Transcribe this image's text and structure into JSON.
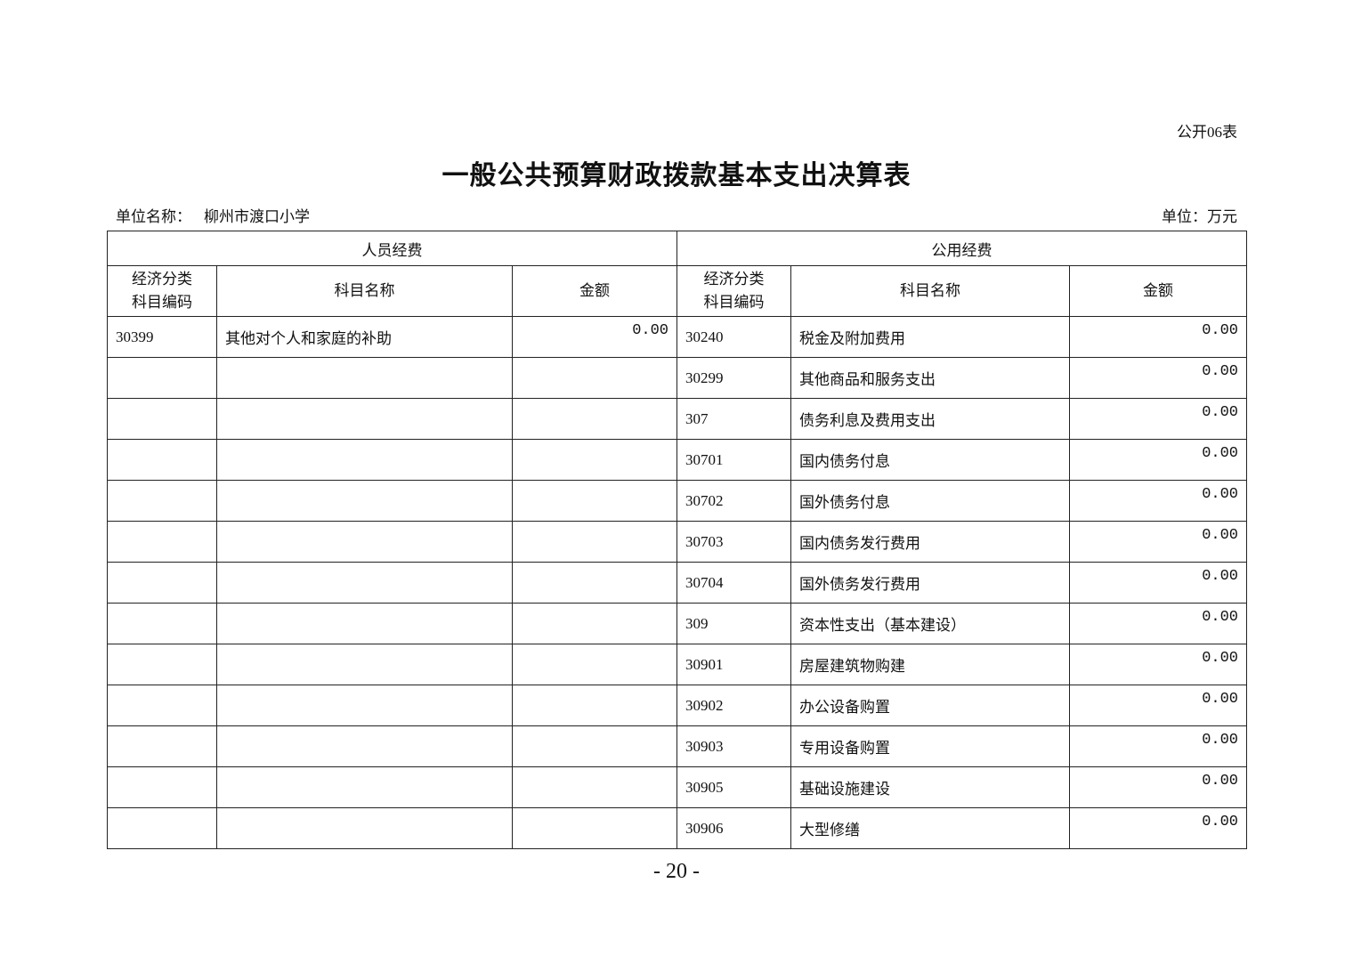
{
  "form_no": "公开06表",
  "title": "一般公共预算财政拨款基本支出决算表",
  "unit_name_label": "单位名称：",
  "unit_name": "柳州市渡口小学",
  "unit": "单位：万元",
  "table": {
    "group_personnel": "人员经费",
    "group_public": "公用经费",
    "col_code": "经济分类科目编码",
    "col_code_line1": "经济分类",
    "col_code_line2": "科目编码",
    "col_name": "科目名称",
    "col_amount": "金额",
    "personnel_rows": [
      {
        "code": "30399",
        "name": "其他对个人和家庭的补助",
        "amount": "0.00"
      }
    ],
    "public_rows": [
      {
        "code": "30240",
        "name": "税金及附加费用",
        "amount": "0.00"
      },
      {
        "code": "30299",
        "name": "其他商品和服务支出",
        "amount": "0.00"
      },
      {
        "code": "307",
        "name": "债务利息及费用支出",
        "amount": "0.00"
      },
      {
        "code": "30701",
        "name": "国内债务付息",
        "amount": "0.00"
      },
      {
        "code": "30702",
        "name": "国外债务付息",
        "amount": "0.00"
      },
      {
        "code": "30703",
        "name": "国内债务发行费用",
        "amount": "0.00"
      },
      {
        "code": "30704",
        "name": "国外债务发行费用",
        "amount": "0.00"
      },
      {
        "code": "309",
        "name": "资本性支出（基本建设）",
        "amount": "0.00"
      },
      {
        "code": "30901",
        "name": "房屋建筑物购建",
        "amount": "0.00"
      },
      {
        "code": "30902",
        "name": "办公设备购置",
        "amount": "0.00"
      },
      {
        "code": "30903",
        "name": "专用设备购置",
        "amount": "0.00"
      },
      {
        "code": "30905",
        "name": "基础设施建设",
        "amount": "0.00"
      },
      {
        "code": "30906",
        "name": "大型修缮",
        "amount": "0.00"
      }
    ]
  },
  "page_number": "- 20 -"
}
